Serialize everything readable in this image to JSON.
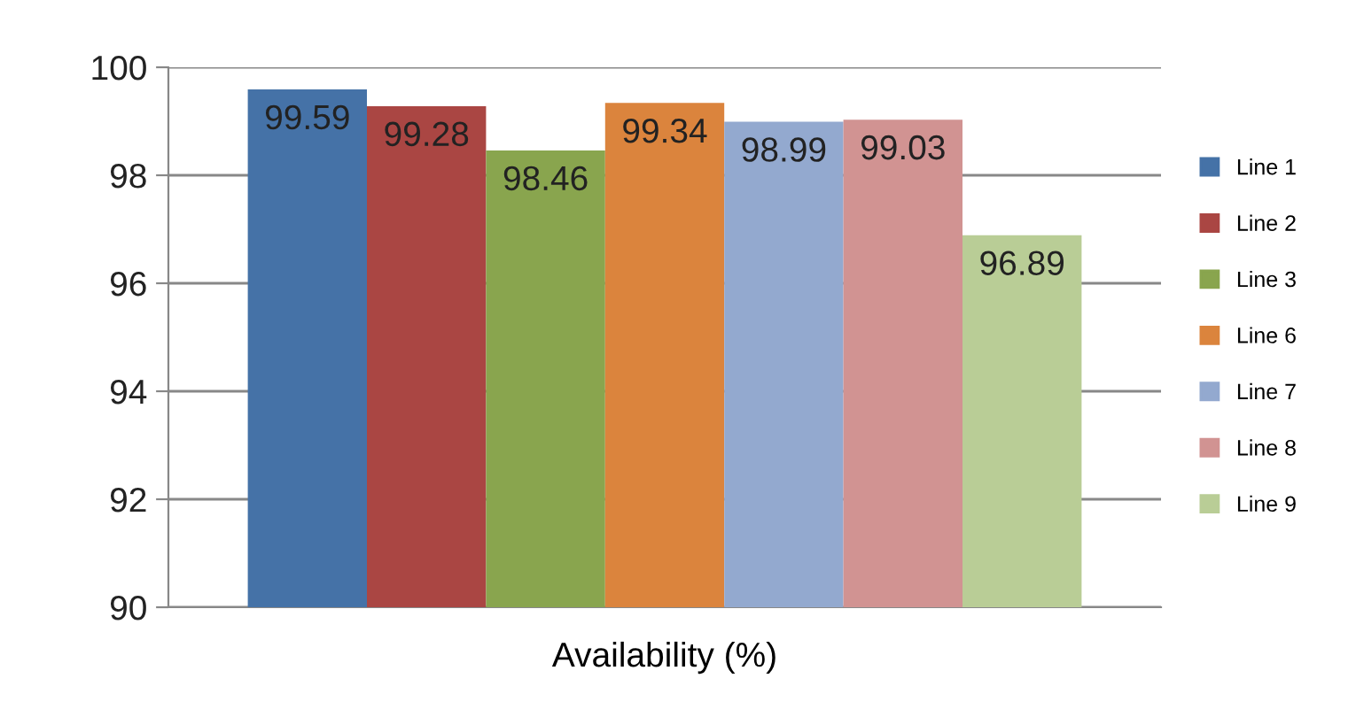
{
  "chart_data": {
    "type": "bar",
    "categories": [
      "Availability (%)"
    ],
    "series": [
      {
        "name": "Line 1",
        "color": "#4572a7",
        "values": [
          99.59
        ]
      },
      {
        "name": "Line 2",
        "color": "#aa4643",
        "values": [
          99.28
        ]
      },
      {
        "name": "Line 3",
        "color": "#89a54e",
        "values": [
          98.46
        ]
      },
      {
        "name": "Line 6",
        "color": "#db843d",
        "values": [
          99.34
        ]
      },
      {
        "name": "Line 7",
        "color": "#93a9cf",
        "values": [
          98.99
        ]
      },
      {
        "name": "Line 8",
        "color": "#d19392",
        "values": [
          99.03
        ]
      },
      {
        "name": "Line 9",
        "color": "#b9cd96",
        "values": [
          96.89
        ]
      }
    ],
    "ylim": [
      90,
      100
    ],
    "yticks": [
      90,
      92,
      94,
      96,
      98,
      100
    ],
    "grid": "y",
    "legend": "right",
    "data_labels": true
  }
}
